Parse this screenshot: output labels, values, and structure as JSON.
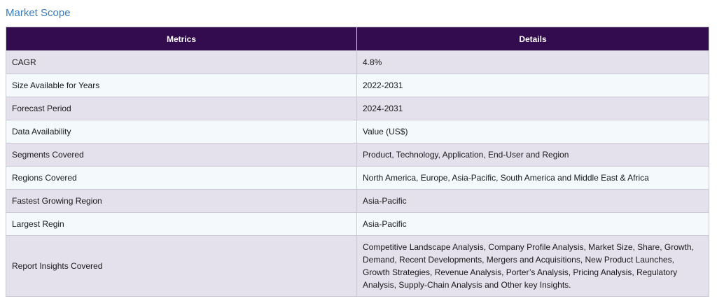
{
  "title": "Market Scope",
  "table": {
    "headers": [
      "Metrics",
      "Details"
    ],
    "rows": [
      {
        "metric": "CAGR",
        "detail": "4.8%"
      },
      {
        "metric": "Size Available for Years",
        "detail": "2022-2031"
      },
      {
        "metric": "Forecast Period",
        "detail": "2024-2031"
      },
      {
        "metric": "Data Availability",
        "detail": "Value (US$)"
      },
      {
        "metric": "Segments Covered",
        "detail": "Product, Technology, Application, End-User and Region"
      },
      {
        "metric": "Regions Covered",
        "detail": "North America, Europe, Asia-Pacific, South America and Middle East & Africa"
      },
      {
        "metric": "Fastest Growing Region",
        "detail": "Asia-Pacific"
      },
      {
        "metric": "Largest Regin",
        "detail": "Asia-Pacific"
      },
      {
        "metric": "Report Insights Covered",
        "detail": "Competitive Landscape Analysis, Company Profile Analysis, Market Size, Share, Growth, Demand, Recent Developments, Mergers and Acquisitions, New Product Launches, Growth Strategies, Revenue Analysis, Porter’s Analysis, Pricing Analysis, Regulatory Analysis, Supply-Chain Analysis and Other key Insights."
      }
    ]
  }
}
